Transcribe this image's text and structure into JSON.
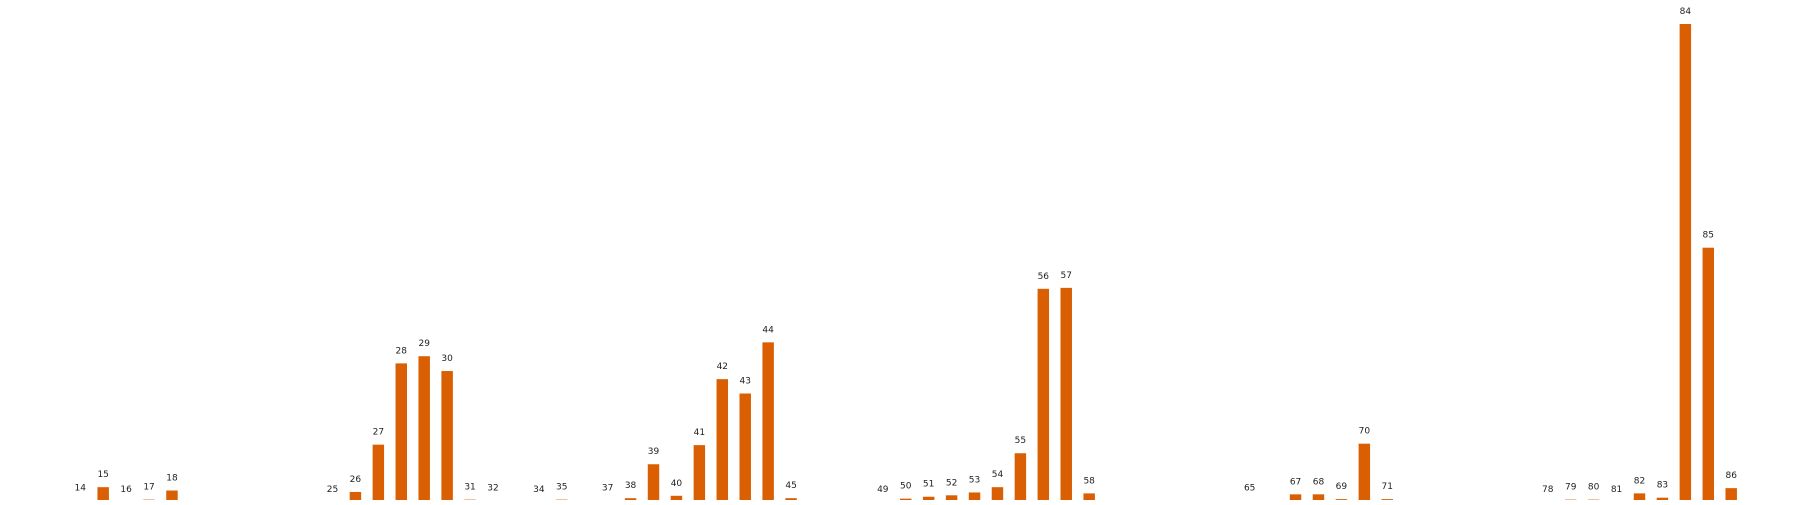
{
  "chart_data": {
    "type": "bar",
    "title": "",
    "xlabel": "",
    "ylabel": "",
    "categories": [
      "14",
      "15",
      "16",
      "17",
      "18",
      "25",
      "26",
      "27",
      "28",
      "29",
      "30",
      "31",
      "32",
      "34",
      "35",
      "37",
      "38",
      "39",
      "40",
      "41",
      "42",
      "43",
      "44",
      "45",
      "49",
      "50",
      "51",
      "52",
      "53",
      "54",
      "55",
      "56",
      "57",
      "58",
      "65",
      "67",
      "68",
      "69",
      "70",
      "71",
      "78",
      "79",
      "80",
      "81",
      "82",
      "83",
      "84",
      "85",
      "86"
    ],
    "category_positions": [
      14,
      15,
      16,
      17,
      18,
      25,
      26,
      27,
      28,
      29,
      30,
      31,
      32,
      34,
      35,
      37,
      38,
      39,
      40,
      41,
      42,
      43,
      44,
      45,
      49,
      50,
      51,
      52,
      53,
      54,
      55,
      56,
      57,
      58,
      65,
      67,
      68,
      69,
      70,
      71,
      78,
      79,
      80,
      81,
      82,
      83,
      84,
      85,
      86
    ],
    "values": [
      0.3,
      3.1,
      0,
      0.5,
      2.4,
      0,
      2.1,
      12.0,
      29.0,
      30.5,
      27.4,
      0.5,
      0.3,
      0,
      0.5,
      0.3,
      0.8,
      7.9,
      1.3,
      11.9,
      25.7,
      22.7,
      33.4,
      0.8,
      0,
      0.7,
      1.1,
      1.4,
      2.0,
      3.1,
      10.2,
      44.6,
      44.8,
      1.8,
      0.3,
      1.6,
      1.6,
      0.6,
      12.2,
      0.6,
      0,
      0.5,
      0.5,
      0,
      1.8,
      0.9,
      100,
      53.2,
      2.9
    ],
    "ylim": [
      0,
      100
    ],
    "xlim": [
      10.5,
      89
    ],
    "bar_color": "#d95f02",
    "grid": false,
    "axes_visible": false,
    "data_labels": "category labels shown above each bar"
  }
}
